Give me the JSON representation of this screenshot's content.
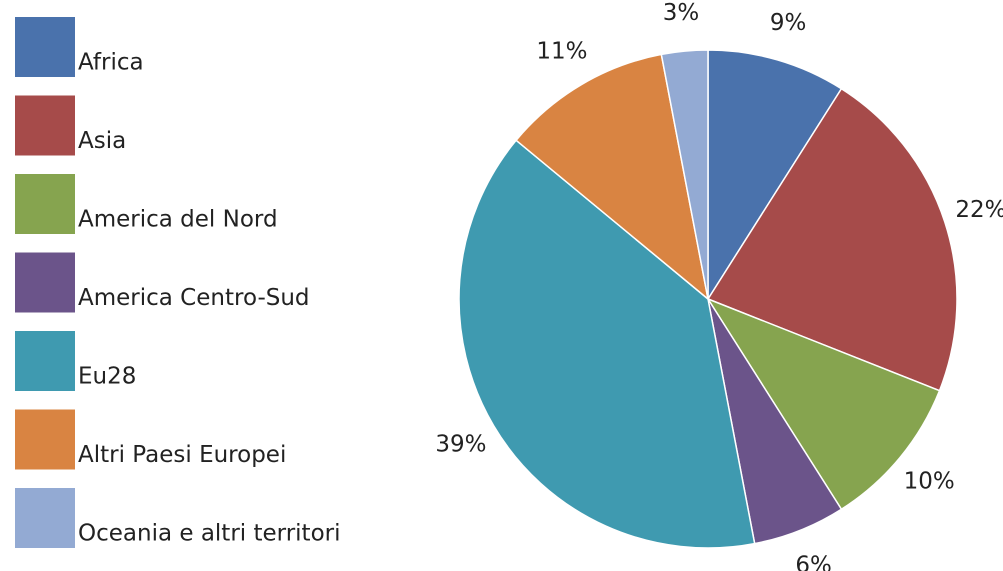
{
  "chart_data": {
    "type": "pie",
    "categories": [
      "Africa",
      "Asia",
      "America del Nord",
      "America Centro-Sud",
      "Eu28",
      "Altri Paesi Europei",
      "Oceania e altri territori"
    ],
    "values": [
      9,
      22,
      10,
      6,
      39,
      11,
      3
    ],
    "value_labels": [
      "9%",
      "22%",
      "10%",
      "6%",
      "39%",
      "11%",
      "3%"
    ],
    "colors": [
      "#4a72ac",
      "#a64b4a",
      "#86a44f",
      "#6b548a",
      "#3f9ab0",
      "#d98442",
      "#93aad3"
    ]
  }
}
